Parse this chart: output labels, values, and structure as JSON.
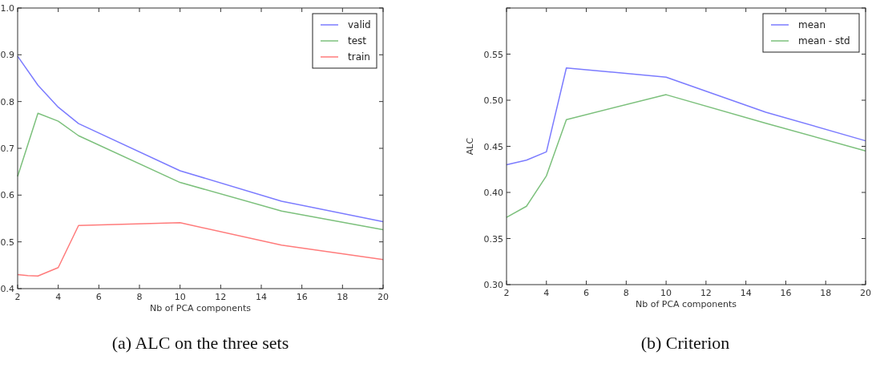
{
  "chart_data": [
    {
      "type": "line",
      "title": "(a) ALC on the three sets",
      "xlabel": "Nb of PCA components",
      "xlim": [
        2,
        20
      ],
      "xticks": [
        2,
        4,
        6,
        8,
        10,
        12,
        14,
        16,
        18,
        20
      ],
      "ylim": [
        0.4,
        1.0
      ],
      "yticks": [
        {
          "value": 0.4,
          "label": "0.4"
        },
        {
          "value": 0.5,
          "label": "0.5"
        },
        {
          "value": 0.6,
          "label": "0.6"
        },
        {
          "value": 0.7,
          "label": "0.7"
        },
        {
          "value": 0.8,
          "label": "0.8"
        },
        {
          "value": 0.9,
          "label": "0.9"
        },
        {
          "value": 1.0,
          "label": "1.0"
        }
      ],
      "legend": "top right",
      "grid": false,
      "series": [
        {
          "name": "valid",
          "color": "#7b7bff",
          "x": [
            2,
            3,
            4,
            5,
            10,
            15,
            20
          ],
          "values": [
            0.897,
            0.835,
            0.788,
            0.753,
            0.652,
            0.587,
            0.543
          ]
        },
        {
          "name": "test",
          "color": "#7cc07c",
          "x": [
            2,
            3,
            4,
            5,
            10,
            15,
            20
          ],
          "values": [
            0.64,
            0.775,
            0.758,
            0.727,
            0.627,
            0.566,
            0.526
          ]
        },
        {
          "name": "train",
          "color": "#ff7b7b",
          "x": [
            2,
            2.5,
            3,
            4,
            5,
            10,
            15,
            20
          ],
          "values": [
            0.43,
            0.428,
            0.427,
            0.445,
            0.535,
            0.541,
            0.493,
            0.462
          ]
        }
      ]
    },
    {
      "type": "line",
      "title": "(b) Criterion",
      "xlabel": "Nb of PCA components",
      "ylabel": "ALC",
      "xlim": [
        2,
        20
      ],
      "xticks": [
        2,
        4,
        6,
        8,
        10,
        12,
        14,
        16,
        18,
        20
      ],
      "ylim": [
        0.3,
        0.6
      ],
      "yticks": [
        {
          "value": 0.3,
          "label": "0.30"
        },
        {
          "value": 0.35,
          "label": "0.35"
        },
        {
          "value": 0.4,
          "label": "0.40"
        },
        {
          "value": 0.45,
          "label": "0.45"
        },
        {
          "value": 0.5,
          "label": "0.50"
        },
        {
          "value": 0.55,
          "label": "0.55"
        },
        {
          "value": 0.6,
          "label": null
        }
      ],
      "legend": "top right",
      "grid": false,
      "series": [
        {
          "name": "mean",
          "color": "#7b7bff",
          "x": [
            2,
            3,
            4,
            5,
            10,
            15,
            20
          ],
          "values": [
            0.43,
            0.435,
            0.444,
            0.535,
            0.525,
            0.487,
            0.456
          ]
        },
        {
          "name": "mean - std",
          "color": "#7cc07c",
          "x": [
            2,
            3,
            4,
            5,
            10,
            15,
            20
          ],
          "values": [
            0.373,
            0.385,
            0.418,
            0.479,
            0.506,
            0.475,
            0.445
          ]
        }
      ]
    }
  ]
}
